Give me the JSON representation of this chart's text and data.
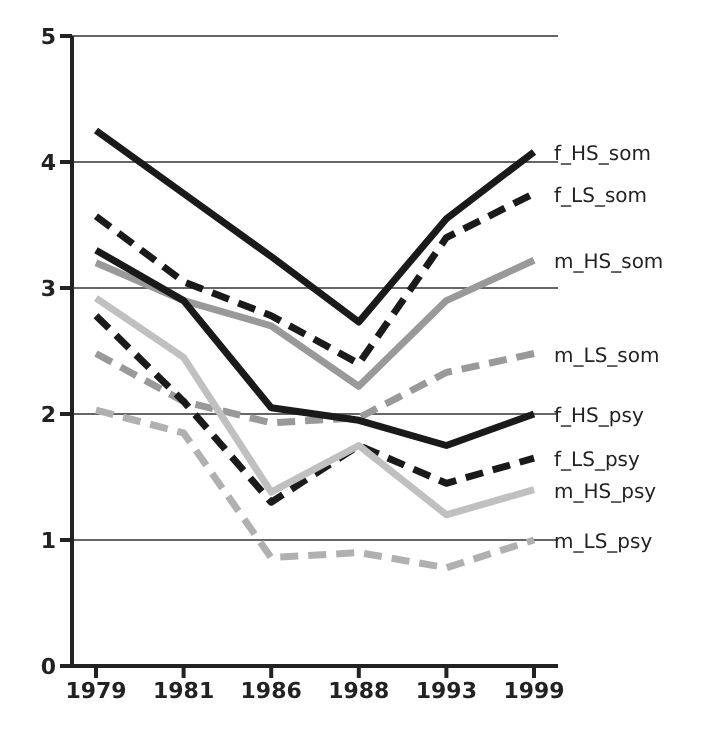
{
  "chart_data": {
    "type": "line",
    "categories": [
      "1979",
      "1981",
      "1986",
      "1988",
      "1993",
      "1999"
    ],
    "ylim": [
      0,
      5
    ],
    "yticks": [
      0,
      1,
      2,
      3,
      4,
      5
    ],
    "grid": "y",
    "marker": "none",
    "series": [
      {
        "name": "f_HS_som",
        "color": "#1a1a1a",
        "line_style": "solid",
        "values": [
          4.25,
          3.75,
          3.25,
          2.73,
          3.55,
          4.08
        ]
      },
      {
        "name": "f_LS_som",
        "color": "#1a1a1a",
        "line_style": "dashed",
        "values": [
          3.57,
          3.05,
          2.78,
          2.4,
          3.4,
          3.75
        ]
      },
      {
        "name": "m_HS_som",
        "color": "#999999",
        "line_style": "solid",
        "values": [
          3.2,
          2.9,
          2.7,
          2.22,
          2.9,
          3.22
        ]
      },
      {
        "name": "m_LS_som",
        "color": "#999999",
        "line_style": "dashed",
        "values": [
          2.48,
          2.1,
          1.93,
          1.97,
          2.33,
          2.48
        ]
      },
      {
        "name": "f_HS_psy",
        "color": "#1a1a1a",
        "line_style": "solid",
        "values": [
          3.3,
          2.9,
          2.05,
          1.95,
          1.75,
          2.0
        ]
      },
      {
        "name": "f_LS_psy",
        "color": "#1a1a1a",
        "line_style": "dashed",
        "values": [
          2.78,
          2.1,
          1.3,
          1.75,
          1.45,
          1.65
        ]
      },
      {
        "name": "m_HS_psy",
        "color": "#c0c0c0",
        "line_style": "solid",
        "values": [
          2.92,
          2.45,
          1.38,
          1.75,
          1.2,
          1.4
        ]
      },
      {
        "name": "m_LS_psy",
        "color": "#b0b0b0",
        "line_style": "dashed",
        "values": [
          2.03,
          1.85,
          0.86,
          0.9,
          0.78,
          1.0
        ]
      }
    ]
  }
}
